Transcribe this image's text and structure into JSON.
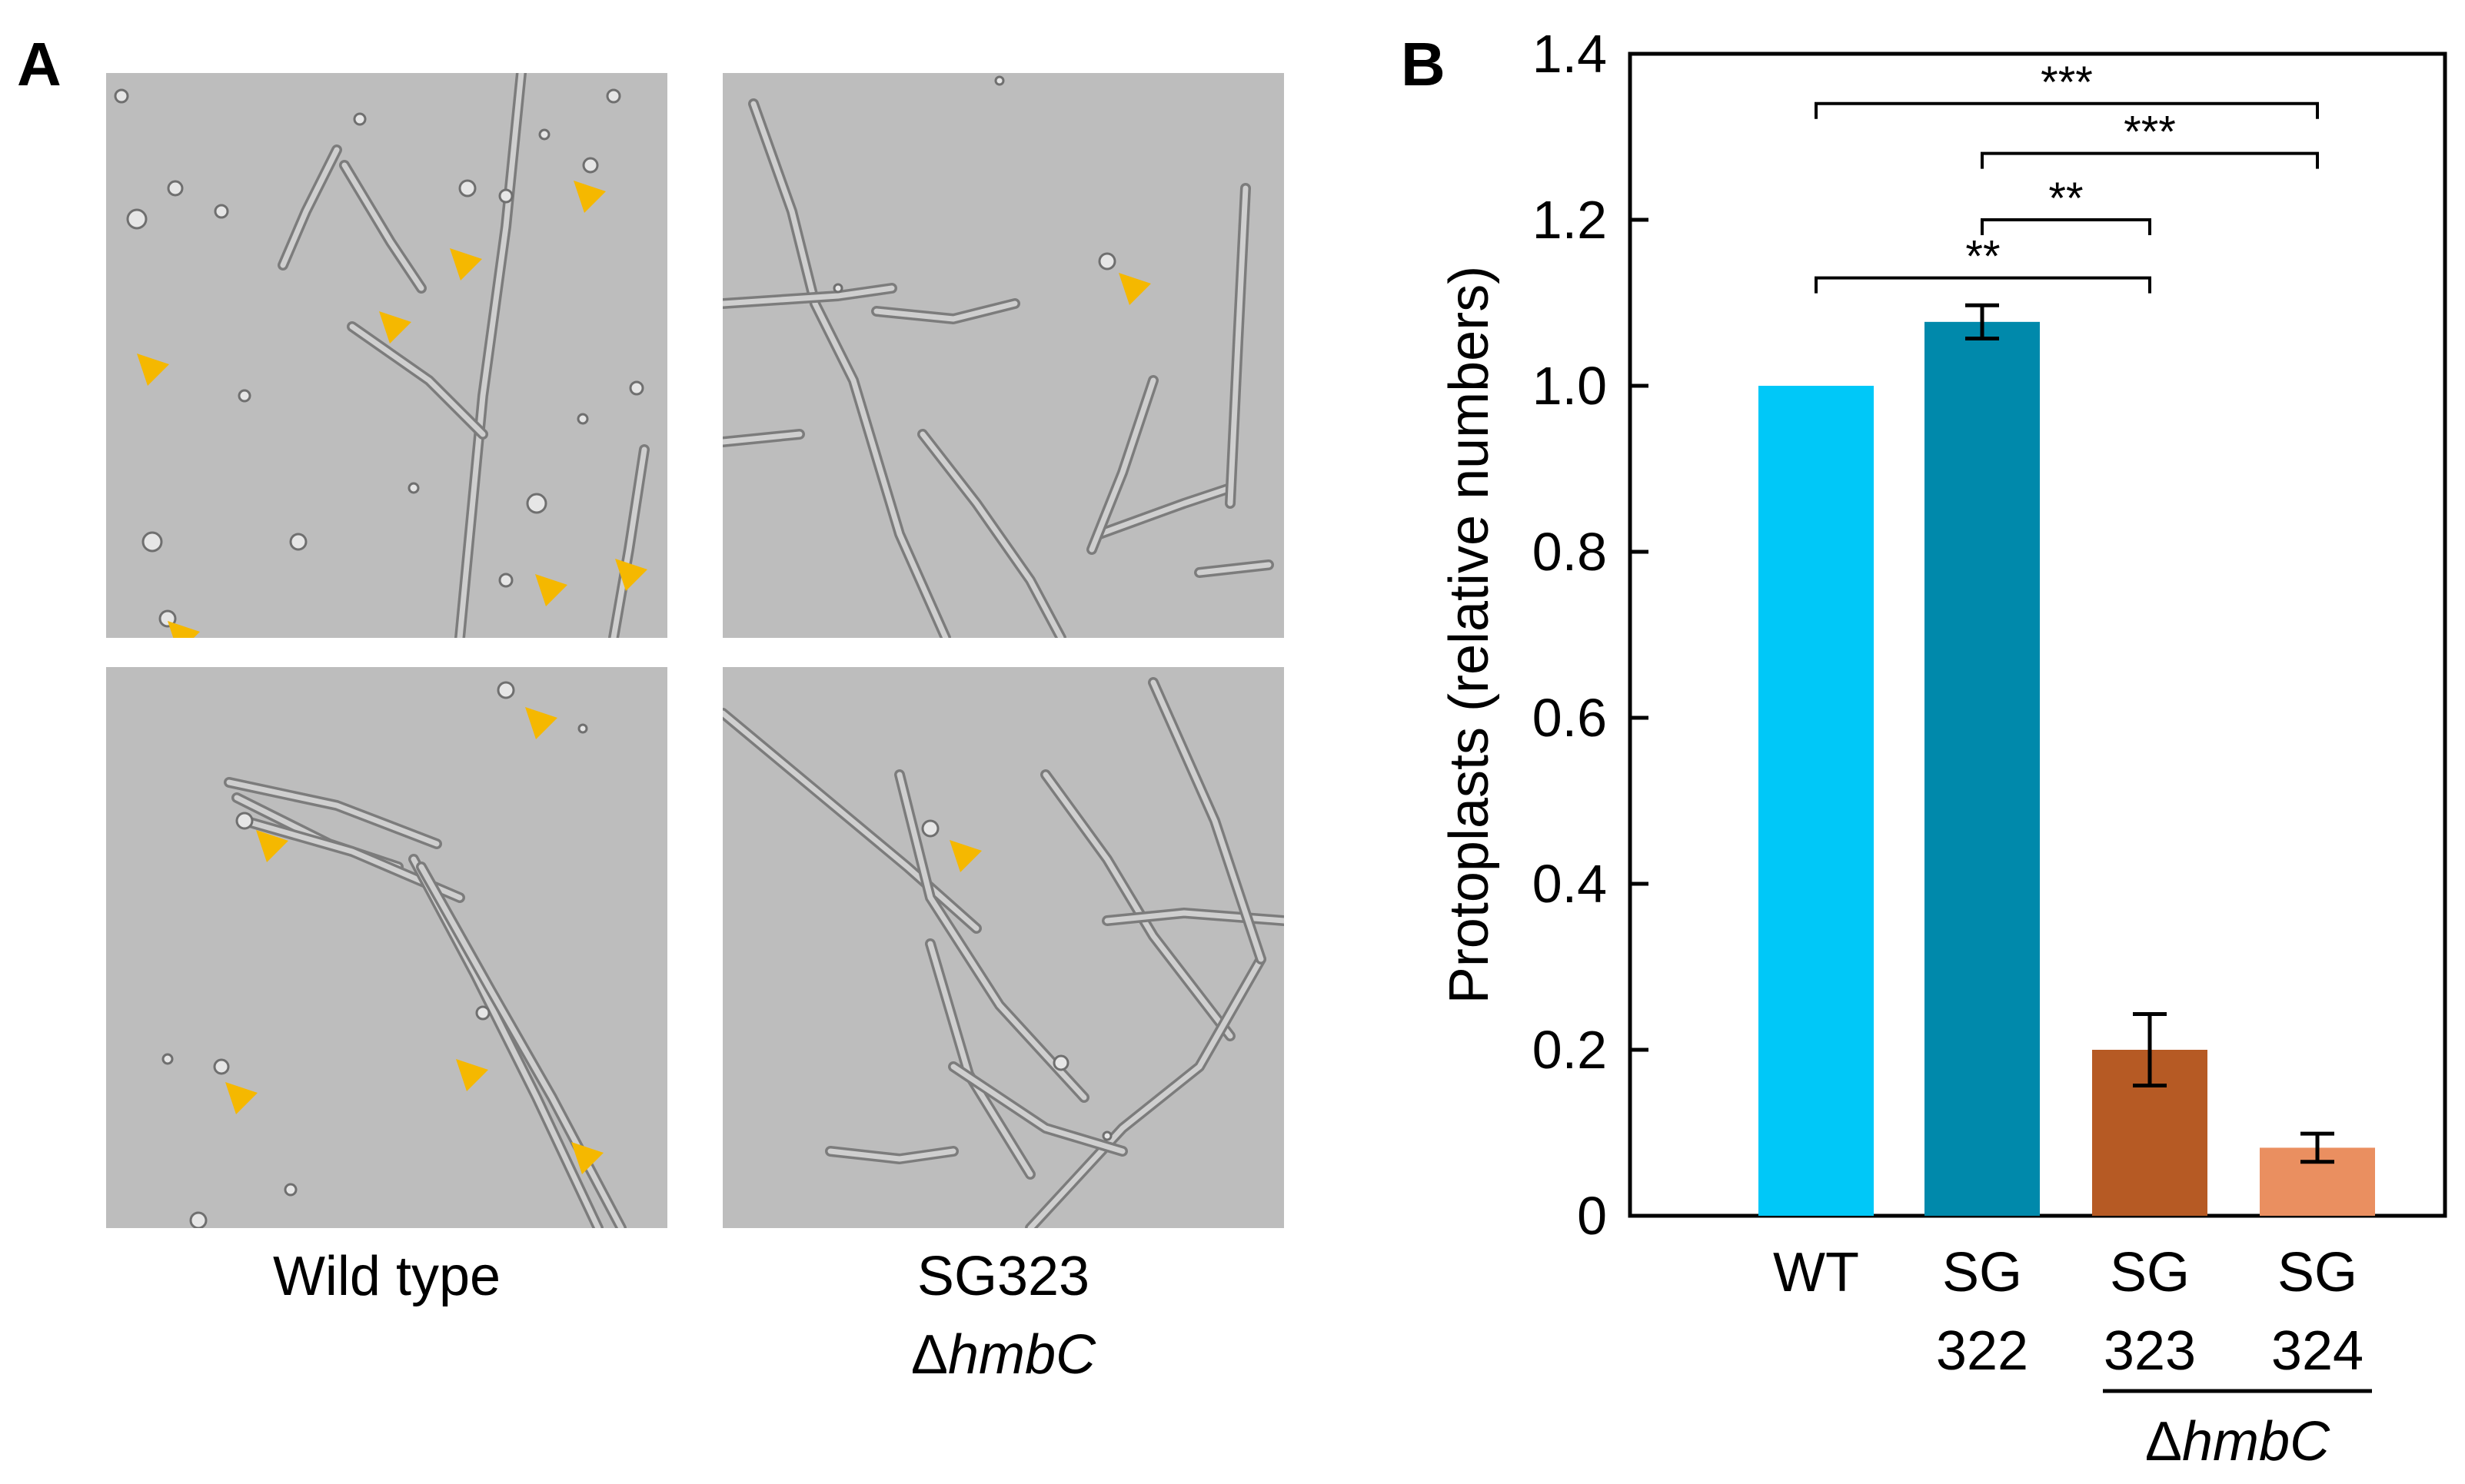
{
  "panel_a": {
    "letter": "A",
    "caption_wt": "Wild type",
    "caption_mut_line1": "SG323",
    "caption_mut_delta": "Δ",
    "caption_mut_gene": "hmbC",
    "colors": {
      "background": "#bdbdbd",
      "hypha": "#8a8a8a",
      "arrowhead": "#f5b800"
    }
  },
  "panel_b": {
    "letter": "B"
  },
  "chart_data": {
    "type": "bar",
    "ylabel": "Protoplasts (relative numbers)",
    "ylim": [
      0,
      1.4
    ],
    "yticks": [
      0,
      0.2,
      0.4,
      0.6,
      0.8,
      1.0,
      1.2,
      1.4
    ],
    "ytick_labels": [
      "0",
      "0.2",
      "0.4",
      "0.6",
      "0.8",
      "1.0",
      "1.2",
      "1.4"
    ],
    "categories": [
      {
        "line1": "WT",
        "line2": ""
      },
      {
        "line1": "SG",
        "line2": "322"
      },
      {
        "line1": "SG",
        "line2": "323"
      },
      {
        "line1": "SG",
        "line2": "324"
      }
    ],
    "values": [
      1.0,
      1.077,
      0.2,
      0.082
    ],
    "errors": [
      0,
      0.02,
      0.043,
      0.017
    ],
    "colors": [
      "#00c8f8",
      "#0089ab",
      "#b65a24",
      "#ea8f60"
    ],
    "group_label_delta": "Δ",
    "group_label_gene": "hmbC",
    "significance": [
      {
        "from": 0,
        "to": 3,
        "label": "***",
        "y": 1.34
      },
      {
        "from": 1,
        "to": 3,
        "label": "***",
        "y": 1.28
      },
      {
        "from": 1,
        "to": 2,
        "label": "**",
        "y": 1.2
      },
      {
        "from": 0,
        "to": 2,
        "label": "**",
        "y": 1.13
      }
    ]
  }
}
